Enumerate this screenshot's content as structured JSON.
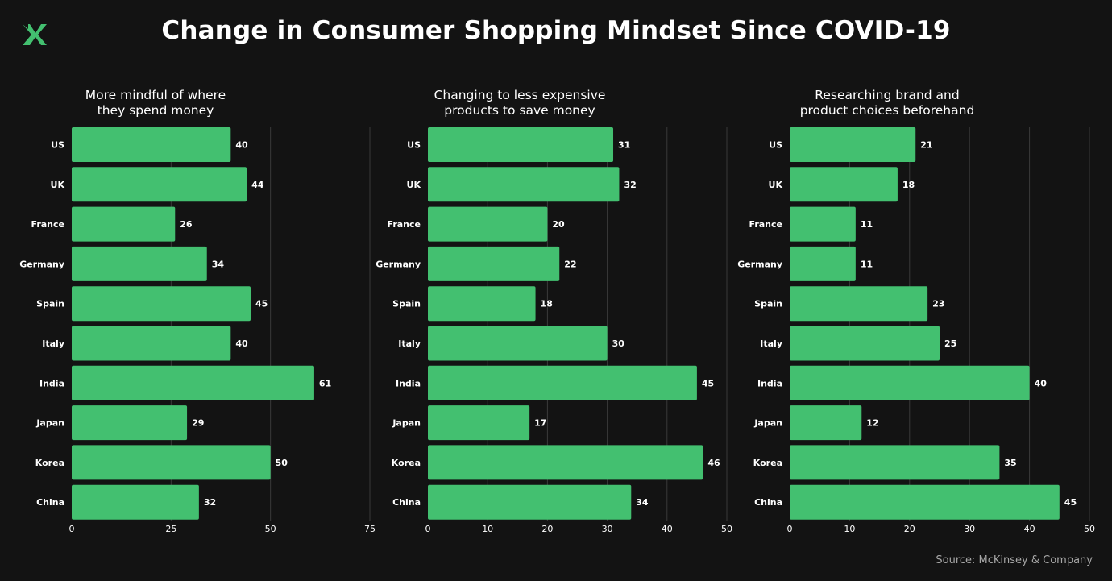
{
  "title": "Change in Consumer Shopping Mindset Since COVID-19",
  "source": "Source: McKinsey & Company",
  "logo_icon": "brand-x-logo",
  "colors": {
    "background": "#131313",
    "bar": "#43c070",
    "grid": "#3a3a3a",
    "text": "#ffffff",
    "source": "#a7a7a7"
  },
  "chart_data": [
    {
      "type": "bar",
      "orientation": "horizontal",
      "title": "More mindful of  where they spend money",
      "title_lines": [
        "More mindful of  where",
        "they spend money"
      ],
      "categories": [
        "US",
        "UK",
        "France",
        "Germany",
        "Spain",
        "Italy",
        "India",
        "Japan",
        "Korea",
        "China"
      ],
      "values": [
        40,
        44,
        26,
        34,
        45,
        40,
        61,
        29,
        50,
        32
      ],
      "xlim": [
        0,
        75
      ],
      "xticks": [
        0,
        25,
        50,
        75
      ],
      "grid": true
    },
    {
      "type": "bar",
      "orientation": "horizontal",
      "title": "Changing to less expensive products to save money",
      "title_lines": [
        "Changing to less expensive",
        "products to save money"
      ],
      "categories": [
        "US",
        "UK",
        "France",
        "Germany",
        "Spain",
        "Italy",
        "India",
        "Japan",
        "Korea",
        "China"
      ],
      "values": [
        31,
        32,
        20,
        22,
        18,
        30,
        45,
        17,
        46,
        34
      ],
      "xlim": [
        0,
        50
      ],
      "xticks": [
        0,
        10,
        20,
        30,
        40,
        50
      ],
      "grid": true
    },
    {
      "type": "bar",
      "orientation": "horizontal",
      "title": "Researching brand and product choices beforehand",
      "title_lines": [
        "Researching brand and",
        "product choices beforehand"
      ],
      "categories": [
        "US",
        "UK",
        "France",
        "Germany",
        "Spain",
        "Italy",
        "India",
        "Japan",
        "Korea",
        "China"
      ],
      "values": [
        21,
        18,
        11,
        11,
        23,
        25,
        40,
        12,
        35,
        45
      ],
      "xlim": [
        0,
        50
      ],
      "xticks": [
        0,
        10,
        20,
        30,
        40,
        50
      ],
      "grid": true
    }
  ]
}
